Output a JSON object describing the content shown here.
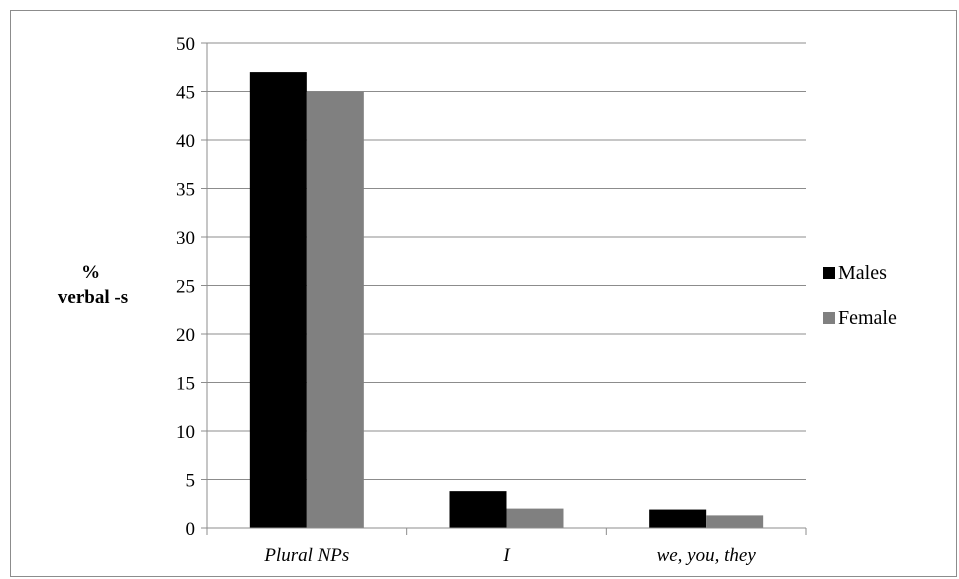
{
  "chart_data": {
    "type": "bar",
    "title": "",
    "xlabel": "",
    "ylabel_lines": [
      "%",
      "verbal -s"
    ],
    "categories": [
      "Plural NPs",
      "I",
      "we, you, they"
    ],
    "series": [
      {
        "name": "Males",
        "values": [
          47,
          3.8,
          1.9
        ],
        "color": "#000000"
      },
      {
        "name": "Female",
        "values": [
          45,
          2,
          1.3
        ],
        "color": "#808080"
      }
    ],
    "ylim": [
      0,
      50
    ],
    "yticks": [
      0,
      5,
      10,
      15,
      20,
      25,
      30,
      35,
      40,
      45,
      50
    ],
    "grid": true,
    "legend_position": "right"
  }
}
